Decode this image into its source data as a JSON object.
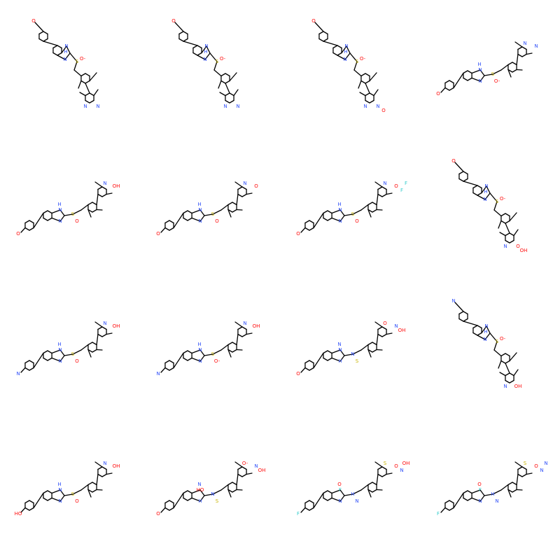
{
  "colors": {
    "background": "#ffffff",
    "bond": "#000000",
    "O": "#ff0d0d",
    "N": "#3050f8",
    "S": "#c8b400",
    "F": "#33cccc"
  },
  "molecules": [
    {
      "id": "m1",
      "tail": "OMe",
      "core_label": "S(O-)",
      "substituent": "piperidin-1-yl",
      "labels": [
        "O",
        "N",
        "H",
        "N",
        "S",
        "O-",
        "N",
        "N"
      ]
    },
    {
      "id": "m2",
      "tail": "OMe",
      "core_label": "S(O-)",
      "substituent": "dimethylamino",
      "labels": [
        "O",
        "N",
        "H",
        "N",
        "S",
        "O-",
        "N",
        "N"
      ]
    },
    {
      "id": "m3",
      "tail": "OMe",
      "core_label": "S(O-)",
      "substituent": "morpholin-4-yl",
      "labels": [
        "O",
        "N",
        "H",
        "N",
        "S",
        "O-",
        "N",
        "N",
        "O"
      ]
    },
    {
      "id": "m4",
      "tail": "OMe",
      "core_label": "S(O-)",
      "substituent": "pyrrolidin-1-yl",
      "labels": [
        "O",
        "N",
        "H",
        "N",
        "S",
        "O-",
        "N",
        "N"
      ]
    },
    {
      "id": "m5",
      "tail": "OMe",
      "core_label": "S(O)",
      "substituent": "CH2OH",
      "labels": [
        "O",
        "N",
        "H",
        "N",
        "S",
        "O",
        "N",
        "OH"
      ]
    },
    {
      "id": "m6",
      "tail": "OMe",
      "core_label": "S(O)",
      "substituent": "OMe",
      "labels": [
        "O",
        "N",
        "H",
        "N",
        "S",
        "O",
        "N",
        "O"
      ]
    },
    {
      "id": "m7",
      "tail": "OMe",
      "core_label": "S(O)",
      "substituent": "OCHF2",
      "labels": [
        "O",
        "N",
        "H",
        "N",
        "S",
        "O",
        "N",
        "O",
        "F",
        "F"
      ]
    },
    {
      "id": "m8",
      "tail": "OMe",
      "core_label": "S(O-)",
      "substituent": "COOH",
      "labels": [
        "O",
        "N",
        "H",
        "N",
        "S",
        "O-",
        "N",
        "O",
        "OH"
      ]
    },
    {
      "id": "m9",
      "tail": "piperidin-1-yl",
      "core_label": "S(O)",
      "substituent": "CH2OH",
      "labels": [
        "N",
        "N",
        "H",
        "N",
        "S",
        "O",
        "N",
        "OH"
      ]
    },
    {
      "id": "m10",
      "tail": "dimethylamino",
      "core_label": "S(O-)",
      "substituent": "CH2OH",
      "labels": [
        "N",
        "N",
        "H",
        "N",
        "S",
        "O-",
        "N",
        "OH"
      ]
    },
    {
      "id": "m11",
      "tail": "morpholin-4-yl",
      "core_label": "S(O)",
      "substituent": "CH2OH",
      "labels": [
        "O",
        "N",
        "N",
        "H",
        "N",
        "S",
        "O",
        "N",
        "OH"
      ]
    },
    {
      "id": "m12",
      "tail": "pyrrolidin-1-yl",
      "core_label": "S(O-)",
      "substituent": "CH2OH",
      "labels": [
        "N",
        "N",
        "H",
        "N",
        "S",
        "O-",
        "N",
        "OH"
      ]
    },
    {
      "id": "m13",
      "tail": "CH2OH",
      "core_label": "S(O)",
      "substituent": "CH2OH",
      "labels": [
        "HO",
        "N",
        "H",
        "N",
        "S",
        "O",
        "N",
        "OH"
      ]
    },
    {
      "id": "m14",
      "tail": "COOH",
      "core_label": "S(O-)",
      "substituent": "CH2OH",
      "labels": [
        "O",
        "HO",
        "N",
        "H",
        "N",
        "S",
        "O-",
        "N",
        "OH"
      ]
    },
    {
      "id": "m15",
      "tail": "OCHF2",
      "core_label": "S(O)",
      "substituent": "CH2OH",
      "labels": [
        "F",
        "F",
        "O",
        "N",
        "H",
        "N",
        "S",
        "O",
        "N",
        "OH"
      ]
    },
    {
      "id": "m16",
      "tail": "OCHF2",
      "core_label": "S(O)",
      "substituent": "piperidin-1-yl",
      "labels": [
        "F",
        "F",
        "O",
        "N",
        "H",
        "N",
        "S",
        "O",
        "N",
        "N"
      ]
    }
  ]
}
